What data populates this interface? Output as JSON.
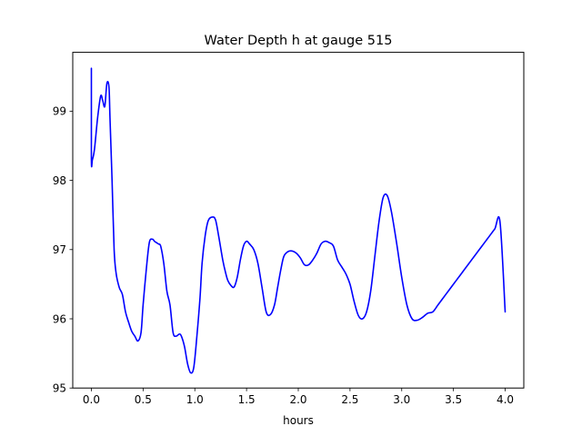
{
  "chart_data": {
    "type": "line",
    "title": "Water Depth h at gauge 515",
    "xlabel": "hours",
    "ylabel": "",
    "xlim": [
      -0.18,
      4.18
    ],
    "ylim": [
      95.0,
      99.85
    ],
    "xticks": [
      0.0,
      0.5,
      1.0,
      1.5,
      2.0,
      2.5,
      3.0,
      3.5,
      4.0
    ],
    "xtick_labels": [
      "0.0",
      "0.5",
      "1.0",
      "1.5",
      "2.0",
      "2.5",
      "3.0",
      "3.5",
      "4.0"
    ],
    "yticks": [
      95,
      96,
      97,
      98,
      99
    ],
    "ytick_labels": [
      "95",
      "96",
      "97",
      "98",
      "99"
    ],
    "grid": false,
    "series": [
      {
        "color": "#0000ff",
        "x": [
          0.0,
          0.0,
          0.01,
          0.03,
          0.06,
          0.09,
          0.11,
          0.13,
          0.15,
          0.17,
          0.18,
          0.2,
          0.22,
          0.24,
          0.27,
          0.3,
          0.33,
          0.36,
          0.39,
          0.42,
          0.45,
          0.48,
          0.5,
          0.53,
          0.56,
          0.59,
          0.61,
          0.63,
          0.65,
          0.67,
          0.7,
          0.73,
          0.76,
          0.79,
          0.82,
          0.85,
          0.87,
          0.9,
          0.93,
          0.96,
          0.99,
          1.02,
          1.05,
          1.07,
          1.1,
          1.13,
          1.17,
          1.2,
          1.23,
          1.27,
          1.3,
          1.32,
          1.35,
          1.38,
          1.41,
          1.44,
          1.47,
          1.5,
          1.53,
          1.57,
          1.61,
          1.65,
          1.69,
          1.73,
          1.77,
          1.8,
          1.83,
          1.86,
          1.9,
          1.94,
          1.98,
          2.02,
          2.06,
          2.1,
          2.14,
          2.18,
          2.22,
          2.26,
          2.3,
          2.34,
          2.38,
          2.42,
          2.46,
          2.5,
          2.54,
          2.58,
          2.62,
          2.66,
          2.7,
          2.74,
          2.78,
          2.82,
          2.86,
          2.9,
          2.95,
          3.0,
          3.05,
          3.1,
          3.15,
          3.2,
          3.25,
          3.3,
          3.35,
          3.4,
          3.45,
          3.5,
          3.55,
          3.6,
          3.65,
          3.7,
          3.75,
          3.8,
          3.85,
          3.9,
          3.95,
          4.0
        ],
        "y": [
          99.62,
          98.3,
          98.3,
          98.45,
          98.9,
          99.22,
          99.15,
          99.07,
          99.4,
          99.35,
          98.9,
          98.0,
          97.0,
          96.65,
          96.45,
          96.35,
          96.1,
          95.95,
          95.82,
          95.75,
          95.68,
          95.8,
          96.2,
          96.7,
          97.1,
          97.15,
          97.12,
          97.1,
          97.08,
          97.05,
          96.8,
          96.4,
          96.2,
          95.8,
          95.75,
          95.78,
          95.75,
          95.6,
          95.35,
          95.22,
          95.3,
          95.75,
          96.3,
          96.8,
          97.2,
          97.42,
          97.47,
          97.43,
          97.2,
          96.85,
          96.65,
          96.55,
          96.48,
          96.46,
          96.6,
          96.85,
          97.05,
          97.12,
          97.08,
          97.0,
          96.8,
          96.45,
          96.1,
          96.06,
          96.2,
          96.45,
          96.7,
          96.9,
          96.97,
          96.98,
          96.95,
          96.88,
          96.78,
          96.78,
          96.85,
          96.95,
          97.08,
          97.12,
          97.1,
          97.05,
          96.85,
          96.75,
          96.65,
          96.5,
          96.25,
          96.05,
          96.0,
          96.1,
          96.4,
          96.9,
          97.4,
          97.75,
          97.78,
          97.55,
          97.1,
          96.6,
          96.2,
          96.0,
          95.98,
          96.02,
          96.08,
          96.1,
          96.2,
          96.3,
          96.4,
          96.5,
          96.6,
          96.7,
          96.8,
          96.9,
          97.0,
          97.1,
          97.2,
          97.3,
          97.4,
          96.1
        ]
      }
    ]
  }
}
